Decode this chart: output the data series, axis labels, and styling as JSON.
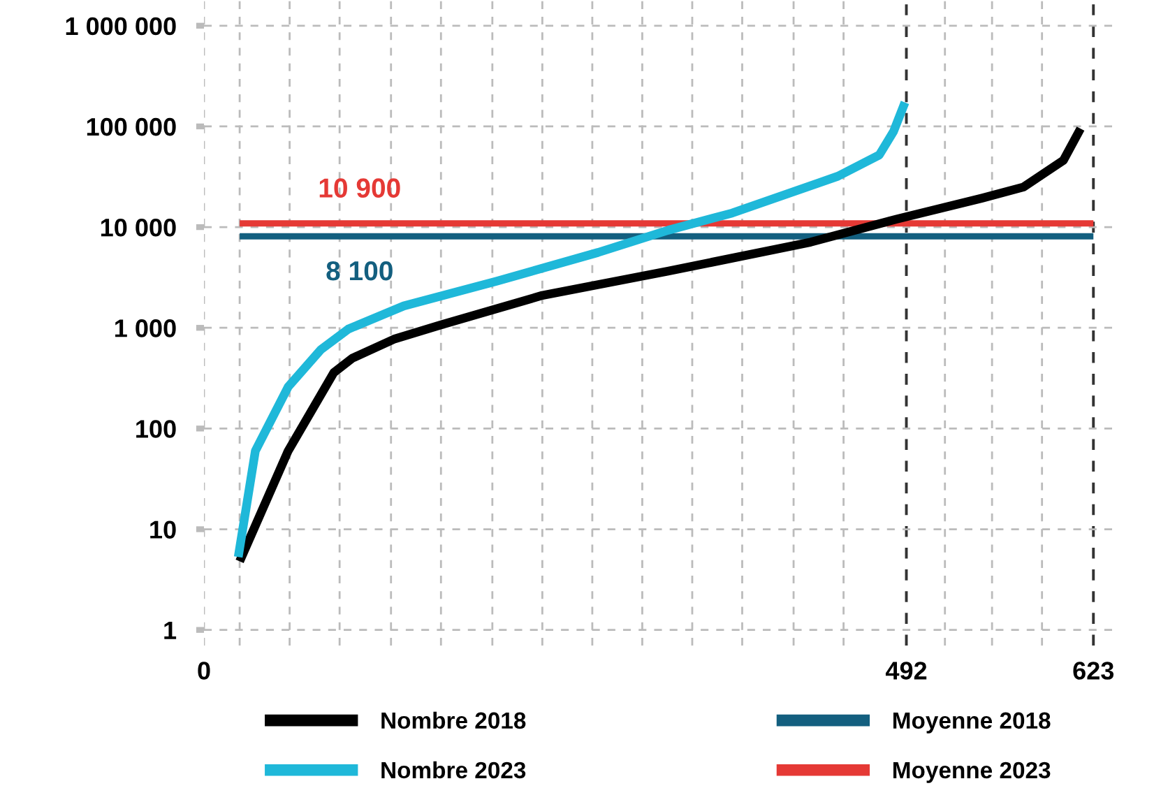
{
  "chart_data": {
    "type": "line",
    "log": "y",
    "grid": true,
    "legend": "bottom",
    "xlim": [
      0,
      640
    ],
    "ylim": [
      0.7,
      1800000
    ],
    "xticks": [
      0,
      {
        "value": 25,
        "label": null
      },
      {
        "value": 60,
        "label": null
      },
      {
        "value": 95,
        "label": null
      },
      {
        "value": 131,
        "label": null
      },
      {
        "value": 166,
        "label": null
      },
      {
        "value": 202,
        "label": null
      },
      {
        "value": 237,
        "label": null
      },
      {
        "value": 272,
        "label": null
      },
      {
        "value": 307,
        "label": null
      },
      {
        "value": 342,
        "label": null
      },
      {
        "value": 377,
        "label": null
      },
      {
        "value": 413,
        "label": null
      },
      {
        "value": 448,
        "label": null
      },
      492,
      {
        "value": 519,
        "label": null
      },
      {
        "value": 552,
        "label": null
      },
      {
        "value": 587,
        "label": null
      },
      623
    ],
    "yticks": [
      {
        "value": 1,
        "label": "1"
      },
      {
        "value": 10,
        "label": "10"
      },
      {
        "value": 100,
        "label": "100"
      },
      {
        "value": 1000,
        "label": "1 000"
      },
      {
        "value": 10000,
        "label": "10 000"
      },
      {
        "value": 100000,
        "label": "100 000"
      },
      {
        "value": 1000000,
        "label": "1 000 000"
      }
    ],
    "series": [
      {
        "name": "Nombre 2018",
        "color": "#000000",
        "x": [
          25,
          59,
          91,
          104,
          133,
          166,
          237,
          325,
          425,
          485,
          545,
          574,
          602,
          614
        ],
        "values": [
          4.8,
          60,
          360,
          500,
          770,
          1070,
          2100,
          3650,
          7100,
          12000,
          19400,
          25000,
          46000,
          95000
        ]
      },
      {
        "name": "Nombre 2023",
        "color": "#1fb8d9",
        "x": [
          24,
          36,
          59,
          82,
          101,
          140,
          205,
          276,
          325,
          370,
          444,
          473,
          483,
          491
        ],
        "values": [
          5.3,
          60,
          260,
          610,
          970,
          1650,
          2900,
          5600,
          9300,
          13800,
          32000,
          52000,
          89000,
          173000
        ]
      },
      {
        "name": "Moyenne 2018",
        "color": "#135f7f",
        "x": [
          25,
          623
        ],
        "values": [
          8100,
          8100
        ]
      },
      {
        "name": "Moyenne 2023",
        "color": "#e53935",
        "x": [
          25,
          623
        ],
        "values": [
          10900,
          10900
        ]
      }
    ],
    "annotations": [
      {
        "text": "10 900",
        "x": 109,
        "y": 10900
      },
      {
        "text": "8 100",
        "x": 109,
        "y": 8100
      }
    ]
  }
}
